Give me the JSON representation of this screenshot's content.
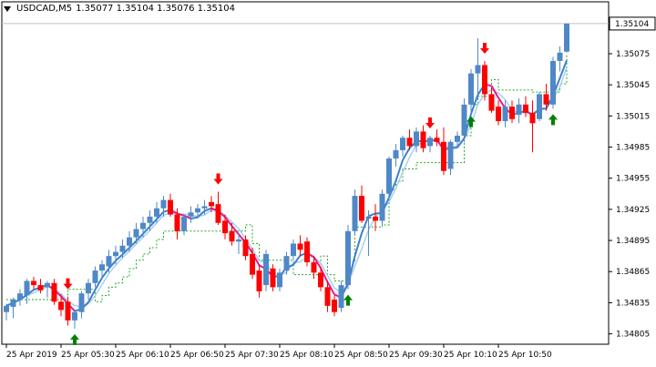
{
  "window": {
    "symbol": "USDCAD,M5",
    "ohlc": "1.35077 1.35104 1.35076 1.35104",
    "current_price_label": "1.35104"
  },
  "colors": {
    "bull": "#4f88c6",
    "bear": "#ff0000",
    "up_arrow": "#008000",
    "down_arrow": "#ff0000",
    "ma_light": "#a6d1ea",
    "ma_magenta": "#e6198c",
    "ma_blue": "#3d7fd1",
    "dashed_line": "#22aa22",
    "grid": "#000000"
  },
  "chart_data": {
    "type": "candlestick",
    "ylim": [
      1.34795,
      1.35125
    ],
    "y_ticks": [
      "1.35075",
      "1.35045",
      "1.35015",
      "1.34985",
      "1.34955",
      "1.34925",
      "1.34895",
      "1.34865",
      "1.34835",
      "1.34805"
    ],
    "x_ticks": [
      "25 Apr 2019",
      "25 Apr 05:30",
      "25 Apr 06:10",
      "25 Apr 06:50",
      "25 Apr 07:30",
      "25 Apr 08:10",
      "25 Apr 08:50",
      "25 Apr 09:30",
      "25 Apr 10:10",
      "25 Apr 10:50"
    ],
    "candles": [
      [
        1.34826,
        1.34834,
        1.34818,
        1.34832
      ],
      [
        1.34831,
        1.3484,
        1.3482,
        1.34838
      ],
      [
        1.34838,
        1.34848,
        1.34832,
        1.34844
      ],
      [
        1.34842,
        1.34858,
        1.34834,
        1.34856
      ],
      [
        1.34856,
        1.3486,
        1.34848,
        1.34852
      ],
      [
        1.34852,
        1.34858,
        1.34844,
        1.34847
      ],
      [
        1.3485,
        1.34856,
        1.3484,
        1.34854
      ],
      [
        1.34854,
        1.34858,
        1.34833,
        1.34836
      ],
      [
        1.34836,
        1.34843,
        1.34822,
        1.34828
      ],
      [
        1.34836,
        1.34841,
        1.34813,
        1.34818
      ],
      [
        1.34818,
        1.34828,
        1.3481,
        1.34826
      ],
      [
        1.34826,
        1.34846,
        1.3482,
        1.34844
      ],
      [
        1.34844,
        1.34858,
        1.34838,
        1.34854
      ],
      [
        1.34854,
        1.3487,
        1.3485,
        1.34866
      ],
      [
        1.34866,
        1.34876,
        1.34858,
        1.34872
      ],
      [
        1.3487,
        1.34886,
        1.34864,
        1.3488
      ],
      [
        1.3488,
        1.3489,
        1.34872,
        1.34884
      ],
      [
        1.34884,
        1.34896,
        1.34878,
        1.3489
      ],
      [
        1.3489,
        1.34904,
        1.34884,
        1.34898
      ],
      [
        1.34898,
        1.34912,
        1.34892,
        1.34906
      ],
      [
        1.34906,
        1.34918,
        1.34898,
        1.34912
      ],
      [
        1.34912,
        1.34924,
        1.34904,
        1.34918
      ],
      [
        1.34918,
        1.34932,
        1.34912,
        1.34926
      ],
      [
        1.34926,
        1.34938,
        1.34918,
        1.34934
      ],
      [
        1.34934,
        1.3494,
        1.34918,
        1.3492
      ],
      [
        1.3492,
        1.34926,
        1.34896,
        1.34904
      ],
      [
        1.34904,
        1.3492,
        1.349,
        1.34918
      ],
      [
        1.34918,
        1.34928,
        1.34912,
        1.34922
      ],
      [
        1.34922,
        1.3493,
        1.34916,
        1.34926
      ],
      [
        1.34926,
        1.34934,
        1.3492,
        1.34928
      ],
      [
        1.34932,
        1.34938,
        1.34922,
        1.34928
      ],
      [
        1.3493,
        1.34942,
        1.3491,
        1.34912
      ],
      [
        1.34914,
        1.3492,
        1.34896,
        1.34902
      ],
      [
        1.34904,
        1.34912,
        1.3489,
        1.34894
      ],
      [
        1.34894,
        1.34902,
        1.34882,
        1.34896
      ],
      [
        1.34896,
        1.349,
        1.34876,
        1.3488
      ],
      [
        1.34882,
        1.34888,
        1.34858,
        1.34862
      ],
      [
        1.34866,
        1.34872,
        1.3484,
        1.34846
      ],
      [
        1.34852,
        1.34886,
        1.34846,
        1.34882
      ],
      [
        1.34868,
        1.34872,
        1.34846,
        1.3485
      ],
      [
        1.3485,
        1.34868,
        1.34846,
        1.34864
      ],
      [
        1.34866,
        1.34884,
        1.34862,
        1.3488
      ],
      [
        1.3488,
        1.34896,
        1.34876,
        1.34892
      ],
      [
        1.34892,
        1.349,
        1.3488,
        1.34886
      ],
      [
        1.34894,
        1.34898,
        1.3487,
        1.34874
      ],
      [
        1.34874,
        1.3488,
        1.34858,
        1.34864
      ],
      [
        1.34864,
        1.3487,
        1.34846,
        1.3485
      ],
      [
        1.3485,
        1.34856,
        1.34826,
        1.34832
      ],
      [
        1.34838,
        1.34842,
        1.34822,
        1.34826
      ],
      [
        1.3483,
        1.34856,
        1.34826,
        1.34852
      ],
      [
        1.34852,
        1.3491,
        1.34848,
        1.34904
      ],
      [
        1.34904,
        1.34944,
        1.349,
        1.34938
      ],
      [
        1.34938,
        1.34948,
        1.34912,
        1.34914
      ],
      [
        1.34916,
        1.34924,
        1.3488,
        1.34918
      ],
      [
        1.34918,
        1.3493,
        1.34904,
        1.34914
      ],
      [
        1.34914,
        1.34944,
        1.34908,
        1.3494
      ],
      [
        1.3494,
        1.34976,
        1.34934,
        1.34974
      ],
      [
        1.34974,
        1.34988,
        1.34966,
        1.34982
      ],
      [
        1.34982,
        1.34996,
        1.34976,
        1.34994
      ],
      [
        1.34994,
        1.35002,
        1.34982,
        1.34986
      ],
      [
        1.34986,
        1.35004,
        1.3498,
        1.35
      ],
      [
        1.35,
        1.35006,
        1.3498,
        1.34984
      ],
      [
        1.34986,
        1.34996,
        1.3498,
        1.34994
      ],
      [
        1.34994,
        1.35002,
        1.34986,
        1.3499
      ],
      [
        1.3499,
        1.35004,
        1.34958,
        1.34962
      ],
      [
        1.34964,
        1.34992,
        1.34958,
        1.3499
      ],
      [
        1.3499,
        1.35,
        1.34984,
        1.34996
      ],
      [
        1.34996,
        1.35032,
        1.3499,
        1.35026
      ],
      [
        1.35026,
        1.3506,
        1.3502,
        1.35056
      ],
      [
        1.35056,
        1.3509,
        1.3503,
        1.35064
      ],
      [
        1.35064,
        1.35068,
        1.3503,
        1.35036
      ],
      [
        1.35036,
        1.35042,
        1.35018,
        1.3502
      ],
      [
        1.35024,
        1.3503,
        1.35006,
        1.3501
      ],
      [
        1.3501,
        1.3503,
        1.35004,
        1.35024
      ],
      [
        1.35024,
        1.3503,
        1.35008,
        1.35012
      ],
      [
        1.35016,
        1.35032,
        1.35008,
        1.35026
      ],
      [
        1.35026,
        1.35034,
        1.35014,
        1.35018
      ],
      [
        1.35018,
        1.3503,
        1.3498,
        1.35008
      ],
      [
        1.35012,
        1.35038,
        1.3501,
        1.35036
      ],
      [
        1.35036,
        1.35046,
        1.3502,
        1.35026
      ],
      [
        1.35026,
        1.35072,
        1.35022,
        1.35068
      ],
      [
        1.35068,
        1.35082,
        1.35058,
        1.35076
      ],
      [
        1.35077,
        1.35104,
        1.35076,
        1.35104
      ]
    ],
    "up_arrows_at": [
      10,
      50,
      68,
      80
    ],
    "down_arrows_at": [
      9,
      31,
      62,
      70
    ]
  }
}
